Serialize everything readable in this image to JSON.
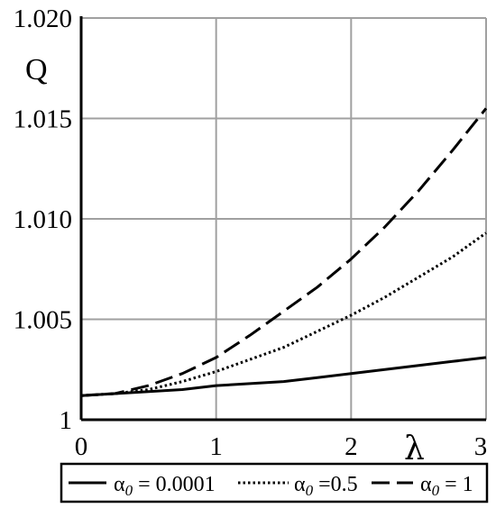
{
  "chart_data": {
    "type": "line",
    "xlabel": "λ",
    "ylabel": "Q",
    "xlim": [
      0,
      3
    ],
    "ylim": [
      1,
      1.02
    ],
    "x_ticks": [
      "0",
      "1",
      "2",
      "3"
    ],
    "y_ticks": [
      "1",
      "1.005",
      "1.010",
      "1.015",
      "1.020"
    ],
    "grid": true,
    "legend_position": "bottom",
    "series": [
      {
        "name": "α0 = 0.0001",
        "legend": {
          "prefix": "α",
          "sub": "0",
          "suffix": " = 0.0001"
        },
        "style": "solid",
        "x": [
          0,
          0.25,
          0.5,
          0.75,
          1,
          1.25,
          1.5,
          1.75,
          2,
          2.25,
          2.5,
          2.75,
          3
        ],
        "y": [
          1.0012,
          1.0013,
          1.0014,
          1.0015,
          1.0017,
          1.0018,
          1.0019,
          1.0021,
          1.0023,
          1.0025,
          1.0027,
          1.0029,
          1.0031
        ]
      },
      {
        "name": "α0 =0.5",
        "legend": {
          "prefix": "α",
          "sub": "0",
          "suffix": " =0.5"
        },
        "style": "dotted",
        "x": [
          0,
          0.25,
          0.5,
          0.75,
          1,
          1.25,
          1.5,
          1.75,
          2,
          2.25,
          2.5,
          2.75,
          3
        ],
        "y": [
          1.0012,
          1.0013,
          1.0015,
          1.0019,
          1.0024,
          1.003,
          1.0036,
          1.0044,
          1.0052,
          1.0061,
          1.0071,
          1.0081,
          1.0093
        ]
      },
      {
        "name": "α0 = 1",
        "legend": {
          "prefix": "α",
          "sub": "0",
          "suffix": " = 1"
        },
        "style": "dashed",
        "x": [
          0,
          0.25,
          0.5,
          0.75,
          1,
          1.25,
          1.5,
          1.75,
          2,
          2.25,
          2.5,
          2.75,
          3
        ],
        "y": [
          1.0012,
          1.0013,
          1.0017,
          1.0023,
          1.0031,
          1.0042,
          1.0054,
          1.0066,
          1.008,
          1.0096,
          1.0114,
          1.0134,
          1.0155
        ]
      }
    ]
  }
}
